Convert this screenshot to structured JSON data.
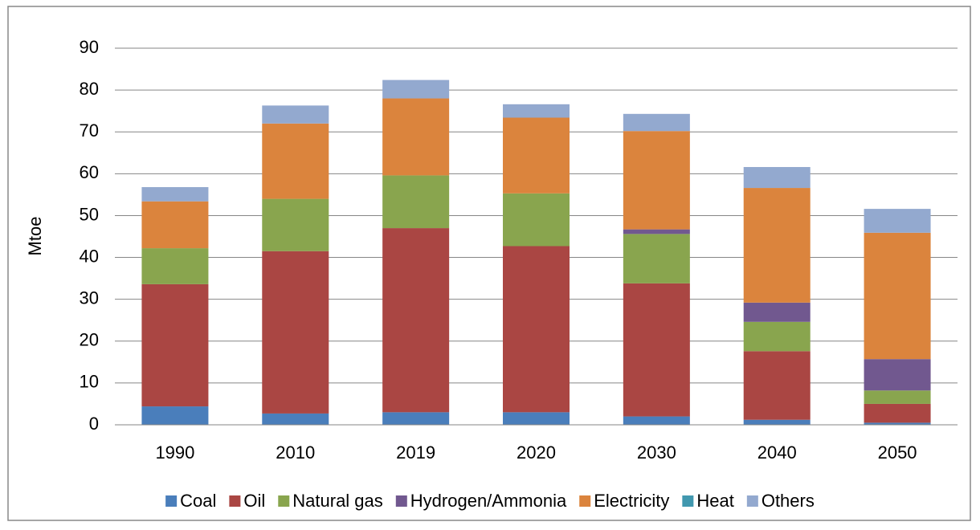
{
  "chart_data": {
    "type": "stacked_bar",
    "y_label": "Mtoe",
    "categories": [
      "1990",
      "2010",
      "2019",
      "2020",
      "2030",
      "2040",
      "2050"
    ],
    "series": [
      {
        "name": "Coal",
        "color": "#4a7ebb",
        "values": [
          4.4,
          2.7,
          3.0,
          3.0,
          2.0,
          1.2,
          0.5
        ]
      },
      {
        "name": "Oil",
        "color": "#aa4643",
        "values": [
          29.2,
          38.8,
          44.0,
          39.7,
          31.8,
          16.4,
          4.5
        ]
      },
      {
        "name": "Natural gas",
        "color": "#89a54e",
        "values": [
          8.6,
          12.5,
          12.6,
          12.6,
          11.8,
          7.0,
          3.2
        ]
      },
      {
        "name": "Hydrogen/Ammonia",
        "color": "#71588f",
        "values": [
          0,
          0,
          0,
          0,
          1.1,
          4.6,
          7.5
        ]
      },
      {
        "name": "Electricity",
        "color": "#db843d",
        "values": [
          11.2,
          18.0,
          18.4,
          18.1,
          23.5,
          27.4,
          30.2
        ]
      },
      {
        "name": "Heat",
        "color": "#4198af",
        "values": [
          0,
          0,
          0,
          0,
          0,
          0,
          0
        ]
      },
      {
        "name": "Others",
        "color": "#93a9cf",
        "values": [
          3.4,
          4.3,
          4.4,
          3.2,
          4.1,
          5.0,
          5.7
        ]
      }
    ],
    "ylim": [
      0,
      90
    ],
    "yticks": [
      0,
      10,
      20,
      30,
      40,
      50,
      60,
      70,
      80,
      90
    ],
    "grid": true,
    "legend": "bottom"
  }
}
